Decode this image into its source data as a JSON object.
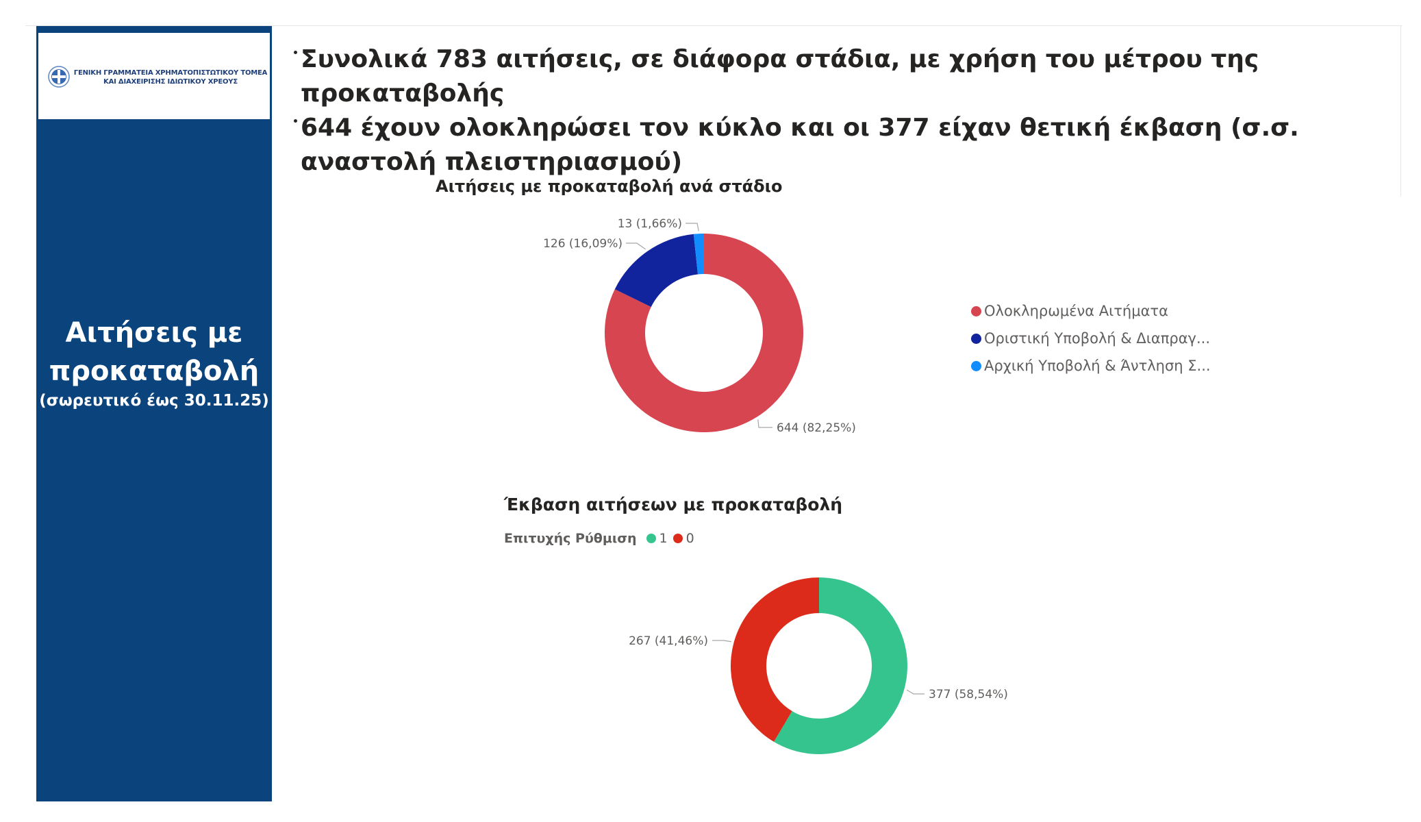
{
  "sidebar": {
    "logo_text_line1": "ΓΕΝΙΚΗ ΓΡΑΜΜΑΤΕΙΑ ΧΡΗΜΑΤΟΠΙΣΤΩΤΙΚΟΥ ΤΟΜΕΑ",
    "logo_text_line2": "ΚΑΙ ΔΙΑΧΕΙΡΙΣΗΣ ΙΔΙΩΤΙΚΟΥ ΧΡΕΟΥΣ",
    "title_line1": "Αιτήσεις με",
    "title_line2": "προκαταβολή",
    "subtitle": "(σωρευτικό έως 30.11.25)",
    "background": "#0b447c"
  },
  "headline": {
    "bullet1": "Συνολικά 783 αιτήσεις, σε διάφορα στάδια, με χρήση του μέτρου της προκαταβολής",
    "bullet2": "644 έχουν ολοκληρώσει τον κύκλο και οι 377 είχαν θετική έκβαση (σ.σ. αναστολή πλειστηριασμού)"
  },
  "chart_data": [
    {
      "type": "pie",
      "donut": true,
      "title": "Αιτήσεις με προκαταβολή ανά στάδιο",
      "legend_position": "right",
      "categories": [
        "Ολοκληρωμένα Αιτήματα",
        "Οριστική Υποβολή & Διαπραγ...",
        "Αρχική Υποβολή & Άντληση Σ..."
      ],
      "values": [
        644,
        126,
        13
      ],
      "data_labels": [
        "644 (82,25%)",
        "126 (16,09%)",
        "13 (1,66%)"
      ],
      "colors": [
        "#d64550",
        "#12239e",
        "#118dff"
      ]
    },
    {
      "type": "pie",
      "donut": true,
      "title": "Έκβαση αιτήσεων με προκαταβολή",
      "legend_title": "Επιτυχής Ρύθμιση",
      "legend_position": "top-left",
      "categories": [
        "1",
        "0"
      ],
      "values": [
        377,
        267
      ],
      "data_labels": [
        "377 (58,54%)",
        "267 (41,46%)"
      ],
      "colors": [
        "#35c48d",
        "#dc2b1a"
      ]
    }
  ]
}
